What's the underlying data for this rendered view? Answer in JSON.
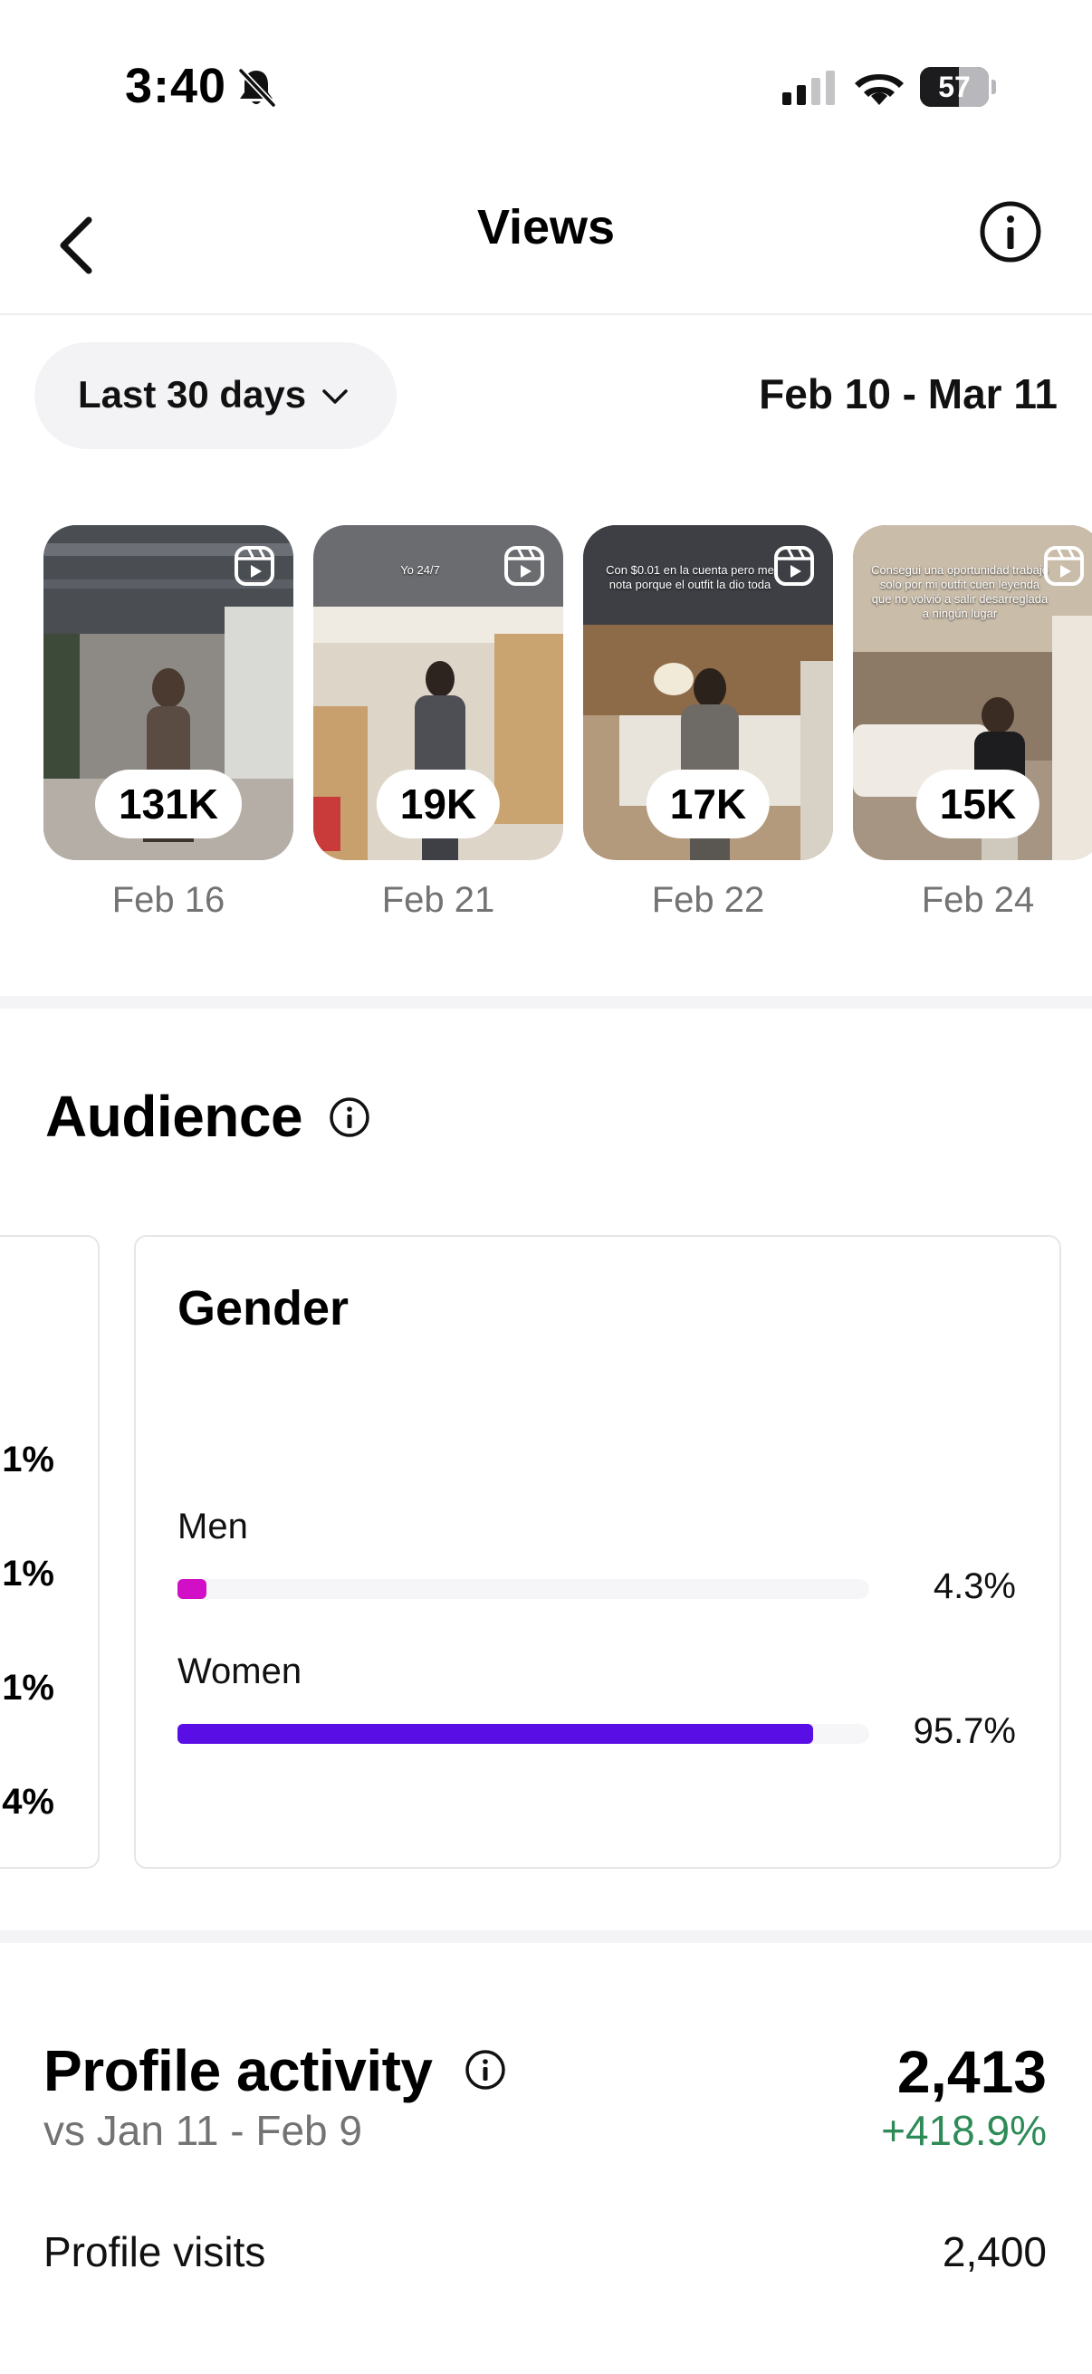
{
  "status_bar": {
    "time": "3:40",
    "battery": "57",
    "battery_level": 0.57,
    "icons": [
      "bell-slash-icon",
      "cellular-signal-icon",
      "wifi-icon",
      "battery-icon"
    ]
  },
  "header": {
    "title": "Views",
    "back_icon": "chevron-left-icon",
    "info_icon": "info-icon"
  },
  "filters": {
    "range_label": "Last 30 days",
    "date_range": "Feb 10 - Mar 11"
  },
  "reels": [
    {
      "views": "131K",
      "date": "Feb 16",
      "caption": ""
    },
    {
      "views": "19K",
      "date": "Feb 21",
      "caption": "Yo 24/7"
    },
    {
      "views": "17K",
      "date": "Feb 22",
      "caption": "Con $0.01 en la cuenta pero me nota porque el outfit la dio toda"
    },
    {
      "views": "15K",
      "date": "Feb 24",
      "caption": "Consegui una oportunidad trabajo solo por mi outfit cuen leyenda que no volvió a salir desarreglada a ningún lugar"
    }
  ],
  "audience": {
    "title": "Audience",
    "previous_card_values": [
      "1%",
      "1%",
      "1%",
      "4%"
    ],
    "gender": {
      "title": "Gender",
      "rows": [
        {
          "label": "Men",
          "value": "4.3%",
          "fraction": 0.043,
          "color": "#d10fc7"
        },
        {
          "label": "Women",
          "value": "95.7%",
          "fraction": 0.957,
          "color": "#5a0ee6"
        }
      ]
    }
  },
  "profile_activity": {
    "title": "Profile activity",
    "compare": "vs Jan 11 - Feb 9",
    "total": "2,413",
    "change": "+418.9%",
    "change_color": "#2e8b57",
    "visits_label": "Profile visits",
    "visits_value": "2,400"
  }
}
